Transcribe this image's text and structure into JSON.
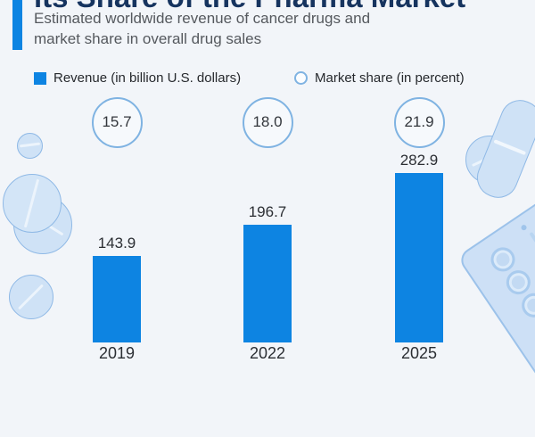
{
  "header": {
    "title_visible_fragment": "its Share of the Pharma Market",
    "subtitle": "Estimated worldwide revenue of cancer drugs and\nmarket share in overall drug sales"
  },
  "legend": {
    "revenue_label": "Revenue (in billion U.S. dollars)",
    "market_share_label": "Market share (in percent)"
  },
  "chart_data": {
    "type": "bar",
    "title": "its Share of the Pharma Market",
    "subtitle": "Estimated worldwide revenue of cancer drugs and market share in overall drug sales",
    "categories": [
      "2019",
      "2022",
      "2025"
    ],
    "series": [
      {
        "name": "Revenue (in billion U.S. dollars)",
        "values": [
          143.9,
          196.7,
          282.9
        ],
        "display": [
          "143.9",
          "196.7",
          "282.9"
        ],
        "style": "bar"
      },
      {
        "name": "Market share (in percent)",
        "values": [
          15.7,
          18.0,
          21.9
        ],
        "display": [
          "15.7",
          "18.0",
          "21.9"
        ],
        "style": "circle-badge"
      }
    ],
    "ylim": [
      0,
      290
    ],
    "grid": false,
    "legend_position": "top"
  },
  "colors": {
    "background": "#f2f5f9",
    "bar": "#0d84e2",
    "accent_bar": "#0d84e2",
    "title": "#16345f",
    "subtitle": "#55595e",
    "circle_border": "#7fb3e2",
    "pill_fill": "#cfe2f6",
    "pill_border": "#8fb9e6"
  },
  "decorations": {
    "left": [
      "round-tablet-icon",
      "round-tablet-pair-icon",
      "round-tablet-icon"
    ],
    "right": [
      "round-tablet-icon",
      "capsule-icon",
      "blister-pack-icon"
    ]
  }
}
